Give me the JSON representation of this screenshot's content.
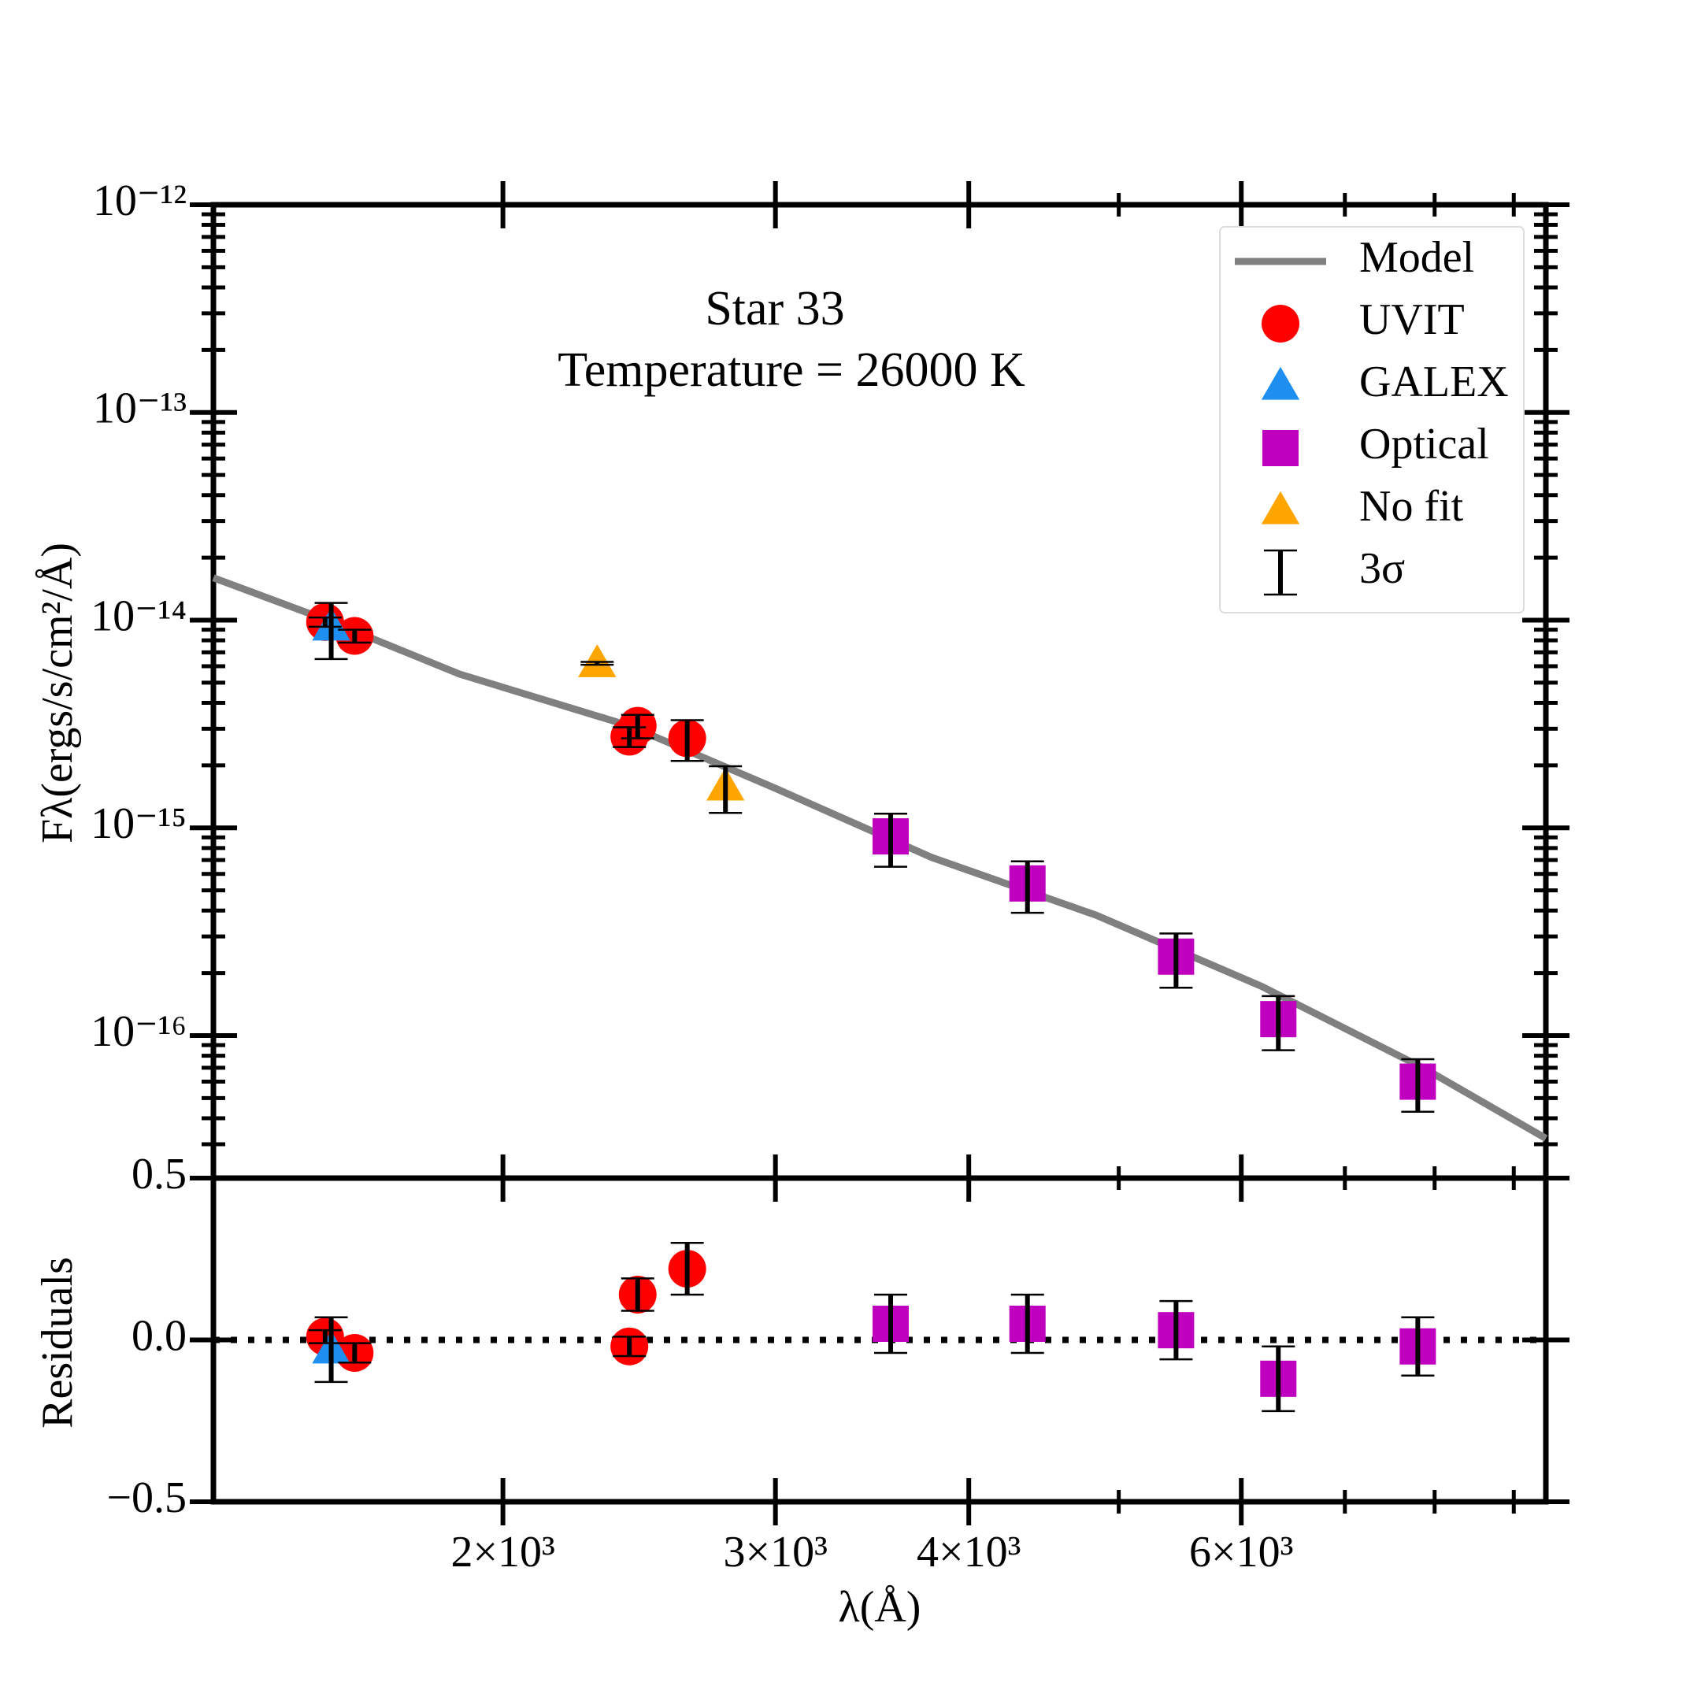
{
  "chart_data": [
    {
      "type": "scatter",
      "title": "Star 33",
      "subtitle": "Temperature = 26000 K",
      "ylabel": "Fλ(ergs/s/cm²/Å)",
      "xscale": "log",
      "yscale": "log",
      "xlim": [
        1300,
        9440
      ],
      "ylim": [
        2.06e-17,
        1e-12
      ],
      "yticks": [
        {
          "value": 1e-16,
          "label": "10⁻¹⁶"
        },
        {
          "value": 1e-15,
          "label": "10⁻¹⁵"
        },
        {
          "value": 1e-14,
          "label": "10⁻¹⁴"
        },
        {
          "value": 1e-13,
          "label": "10⁻¹³"
        },
        {
          "value": 1e-12,
          "label": "10⁻¹²"
        }
      ],
      "yticks_minor": [
        3e-17,
        4e-17,
        5e-17,
        6e-17,
        7e-17,
        8e-17,
        9e-17,
        2e-16,
        3e-16,
        4e-16,
        5e-16,
        6e-16,
        7e-16,
        8e-16,
        9e-16,
        2e-15,
        3e-15,
        4e-15,
        5e-15,
        6e-15,
        7e-15,
        8e-15,
        9e-15,
        2e-14,
        3e-14,
        4e-14,
        5e-14,
        6e-14,
        7e-14,
        8e-14,
        9e-14,
        2e-13,
        3e-13,
        4e-13,
        5e-13,
        6e-13,
        7e-13,
        8e-13,
        9e-13
      ],
      "legend": "upper right",
      "errorbar_label": "3σ",
      "series": [
        {
          "name": "Model",
          "type": "line",
          "color": "#808080",
          "x": [
            1300,
            1540,
            1875,
            2414,
            3000,
            3786,
            4834,
            6180,
            7890,
            9440
          ],
          "values": [
            1.6e-14,
            1e-14,
            5.5e-15,
            3.1e-15,
            1.55e-15,
            7.2e-16,
            3.8e-16,
            1.73e-16,
            6.9e-17,
            3.2e-17
          ]
        },
        {
          "name": "UVIT",
          "marker": "circle",
          "color": "#ff0000",
          "x": [
            1535,
            1604,
            2414,
            2444,
            2631
          ],
          "values": [
            9.8e-15,
            8.4e-15,
            2.75e-15,
            3.1e-15,
            2.7e-15
          ],
          "errors": [
            5e-16,
            6e-16,
            3e-16,
            4e-16,
            6e-16
          ]
        },
        {
          "name": "GALEX",
          "marker": "triangle",
          "color": "#1e8ff0",
          "x": [
            1549
          ],
          "values": [
            9.3e-15
          ],
          "errors": [
            2.8e-15
          ]
        },
        {
          "name": "Optical",
          "marker": "square",
          "color": "#bf00bf",
          "x": [
            3561,
            4365,
            5445,
            6340,
            7802
          ],
          "values": [
            9.1e-16,
            5.4e-16,
            2.4e-16,
            1.2e-16,
            6e-17
          ],
          "errors": [
            2.6e-16,
            1.5e-16,
            7e-17,
            3.5e-17,
            1.7e-17
          ]
        },
        {
          "name": "No fit",
          "marker": "triangle",
          "color": "#ffa500",
          "x": [
            2301,
            2785
          ],
          "values": [
            6.2e-15,
            1.58e-15
          ],
          "errors": [
            1e-16,
            4e-16
          ]
        }
      ]
    },
    {
      "type": "residuals",
      "xlabel": "λ(Å)",
      "ylabel": "Residuals",
      "xscale": "log",
      "xlim": [
        1300,
        9440
      ],
      "xticks": [
        {
          "value": 2000,
          "label": "2×10³"
        },
        {
          "value": 3000,
          "label": "3×10³"
        },
        {
          "value": 4000,
          "label": "4×10³"
        },
        {
          "value": 6000,
          "label": "6×10³"
        }
      ],
      "xticks_minor": [
        5000,
        7000,
        8000,
        9000
      ],
      "ylim": [
        -0.5,
        0.5
      ],
      "yticks": [
        {
          "value": -0.5,
          "label": "−0.5"
        },
        {
          "value": 0,
          "label": "0.0"
        },
        0.5
      ],
      "hline": 0,
      "series": [
        {
          "marker": "circle",
          "color": "#ff0000",
          "x": [
            1535,
            1604,
            2414,
            2444,
            2631
          ],
          "values": [
            0.01,
            -0.04,
            -0.02,
            0.14,
            0.22
          ],
          "errors": [
            0.02,
            0.03,
            0.03,
            0.05,
            0.08
          ]
        },
        {
          "marker": "triangle",
          "color": "#1e8ff0",
          "x": [
            1549
          ],
          "values": [
            -0.03
          ],
          "errors": [
            0.1
          ]
        },
        {
          "marker": "square",
          "color": "#bf00bf",
          "x": [
            3561,
            4365,
            5445,
            6340,
            7802
          ],
          "values": [
            0.05,
            0.05,
            0.03,
            -0.12,
            -0.02
          ],
          "errors": [
            0.09,
            0.09,
            0.09,
            0.1,
            0.09
          ]
        }
      ]
    }
  ]
}
